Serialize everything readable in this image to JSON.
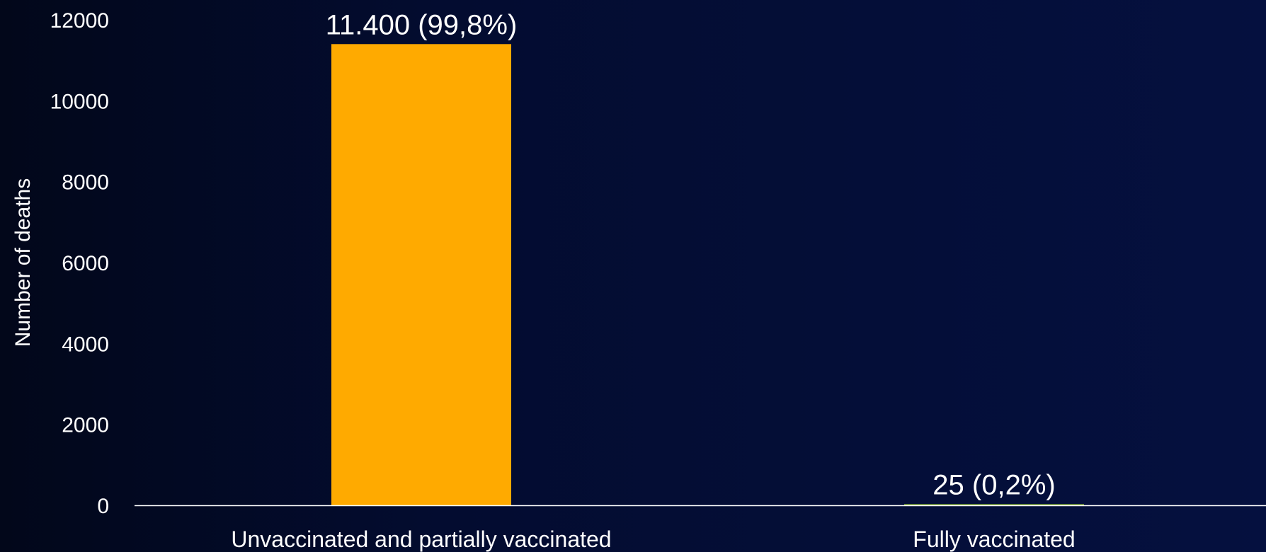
{
  "chart_data": {
    "type": "bar",
    "title": "",
    "xlabel": "",
    "ylabel": "Number of deaths",
    "ylim": [
      0,
      12000
    ],
    "yticks": [
      0,
      2000,
      4000,
      6000,
      8000,
      10000,
      12000
    ],
    "categories": [
      "Unvaccinated and partially vaccinated",
      "Fully vaccinated"
    ],
    "values": [
      11400,
      25
    ],
    "data_labels": [
      "11.400 (99,8%)",
      "25 (0,2%)"
    ],
    "bar_colors": [
      "#FFAA00",
      "#9ACD32"
    ],
    "grid": false,
    "legend": "none"
  },
  "colors": {
    "background_left": "#02071a",
    "background_right": "#05103f",
    "text": "#ffffff",
    "axis_line": "#ffffff"
  }
}
